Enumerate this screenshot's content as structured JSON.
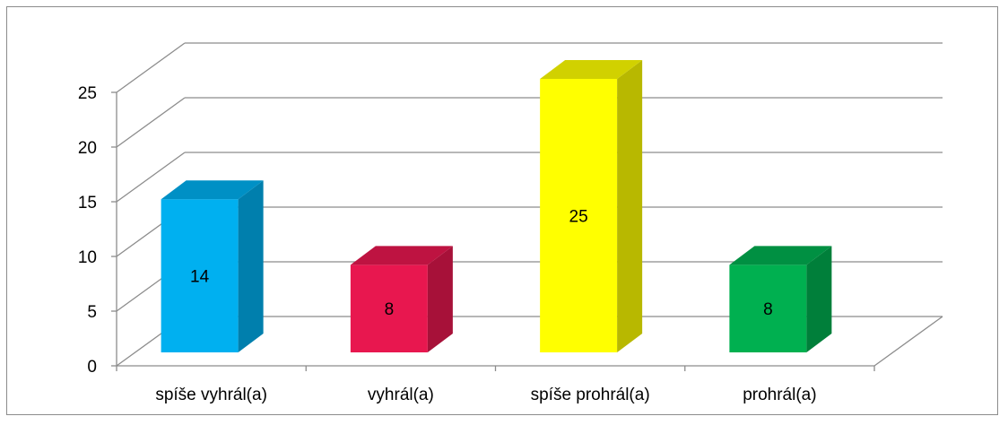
{
  "chart_data": {
    "type": "bar",
    "style": "3d-column",
    "categories": [
      "spíše vyhrál(a)",
      "vyhrál(a)",
      "spíše prohrál(a)",
      "prohrál(a)"
    ],
    "values": [
      14,
      8,
      25,
      8
    ],
    "data_labels": [
      "14",
      "8",
      "25",
      "8"
    ],
    "colors": [
      "#00b0f0",
      "#e8174f",
      "#ffff00",
      "#00b050"
    ],
    "ylim": [
      0,
      25
    ],
    "yticks": [
      "0",
      "5",
      "10",
      "15",
      "20",
      "25"
    ],
    "grid": true,
    "legend": "none"
  }
}
